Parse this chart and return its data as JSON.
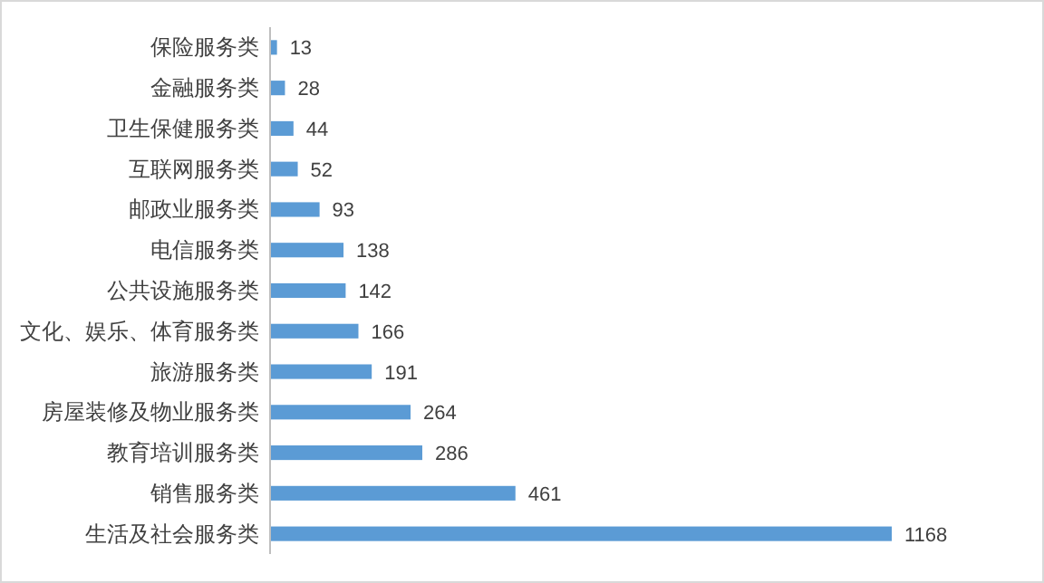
{
  "chart_data": {
    "type": "bar",
    "orientation": "horizontal",
    "categories": [
      "保险服务类",
      "金融服务类",
      "卫生保健服务类",
      "互联网服务类",
      "邮政业服务类",
      "电信服务类",
      "公共设施服务类",
      "文化、娱乐、体育服务类",
      "旅游服务类",
      "房屋装修及物业服务类",
      "教育培训服务类",
      "销售服务类",
      "生活及社会服务类"
    ],
    "values": [
      13,
      28,
      44,
      52,
      93,
      138,
      142,
      166,
      191,
      264,
      286,
      461,
      1168
    ],
    "color": "#5b9bd5",
    "data_labels": true
  }
}
